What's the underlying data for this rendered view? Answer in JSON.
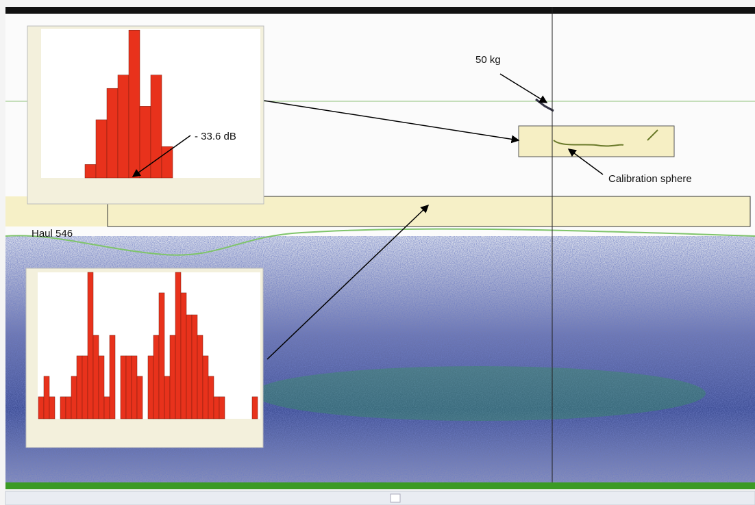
{
  "annotations": {
    "weight": "50 kg",
    "target_strength": "- 33.6 dB",
    "sphere": "Calibration sphere",
    "haul": "Haul 546"
  },
  "histograms": [
    {
      "type": "bar",
      "color": "#e8321c",
      "ylim": [
        0,
        100
      ],
      "values": [
        0,
        0,
        0,
        0,
        9,
        39,
        60,
        69,
        99,
        48,
        69,
        21,
        0,
        0,
        0,
        0,
        0,
        0,
        0,
        0
      ]
    },
    {
      "type": "bar",
      "color": "#e8321c",
      "ylim": [
        0,
        100
      ],
      "values": [
        15,
        29,
        15,
        0,
        15,
        15,
        29,
        43,
        43,
        100,
        57,
        43,
        15,
        57,
        0,
        43,
        43,
        43,
        29,
        0,
        43,
        57,
        86,
        29,
        57,
        100,
        86,
        71,
        71,
        57,
        43,
        29,
        15,
        15,
        0,
        0,
        0,
        0,
        0,
        15
      ]
    }
  ]
}
